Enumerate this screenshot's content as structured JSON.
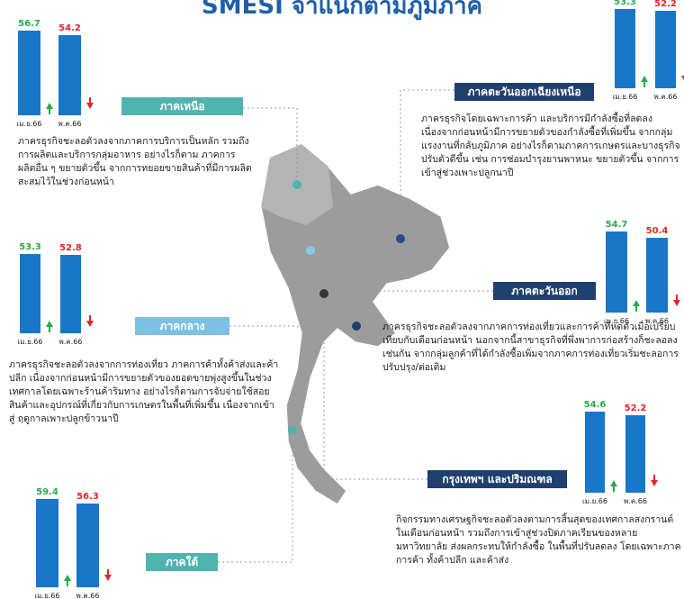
{
  "title": "SMESI จำแนกตามภูมิภาค",
  "categories": [
    "เม.ย.66",
    "พ.ค.66"
  ],
  "regions": [
    {
      "name": "ภาคเหนือ",
      "values": [
        56.7,
        54.2
      ],
      "text": "ภาครธุรกิจชะลอตัวลงจากภาคการบริการเป็นหลัก รวมถึงการผลิตและบริการกลุ่มอาหาร อย่างไรก็ตาม ภาคการผลิตอื่น ๆ ขยายตัวขึ้น จากการทยอยขายสินค้าที่มีการผลิตสะสมไว้ในช่วงก่อนหน้า"
    },
    {
      "name": "ภาคตะวันออกเฉียงเหนือ",
      "values": [
        53.3,
        52.2
      ],
      "text": "ภาครธุรกิจโดยเฉพาะการค้า และบริการมีกำลังซื้อที่ลดลง เนื่องจากก่อนหน้ามีการขยายตัวของกำลังซื้อที่เพิ่มขึ้น จากกลุ่มแรงงานที่กลับภูมิภาค อย่างไรก็ตามภาคการเกษตรและบางธุรกิจปรับตัวดีขึ้น เช่น การซ่อมบำรุงยานพาหนะ ขยายตัวขึ้น จากการเข้าสู่ช่วงเพาะปลูกนาปี"
    },
    {
      "name": "ภาคกลาง",
      "values": [
        53.3,
        52.8
      ],
      "text": "ภาครธุรกิจชะลอตัวลงจากการท่องเที่ยว ภาคการค้าทั้งค้าส่งและค้าปลีก เนื่องจากก่อนหน้ามีการขยายตัวของยอดขายพุ่งสูงขึ้นในช่วงเทศกาลโดยเฉพาะร้านค้าริมทาง อย่างไรก็ตามการจับจ่ายใช้สอยสินค้าและอุปกรณ์ที่เกี่ยวกับการเกษตรในพื้นที่เพิ่มขึ้น เนื่องจากเข้าสู่ ฤดูกาลเพาะปลูกข้าวนาปี"
    },
    {
      "name": "ภาคตะวันออก",
      "values": [
        54.7,
        50.4
      ],
      "text": "ภาครธุรกิจชะลอตัวลงจากภาคการท่องเที่ยวและการค้าที่หดตัวเมื่อเปรียบเทียบกับเดือนก่อนหน้า นอกจากนี้สาขาธุรกิจที่พึ่งพาการก่อสร้างก็ชะลอลงเช่นกัน จากกลุ่มลูกค้าที่ได้กำลังซื้อเพิ่มจากภาคการท่องเที่ยวเริ่มชะลอการปรับปรุง/ต่อเติม"
    },
    {
      "name": "กรุงเทพฯ และปริมณฑล",
      "values": [
        54.6,
        52.2
      ],
      "text": "กิจกรรมทางเศรษฐกิจชะลอตัวลงตามการสิ้นสุดของเทศกาลสงกรานต์ในเดือนก่อนหน้า รวมถึงการเข้าสู่ช่วงปิดภาคเรียนของหลายมหาวิทยาลัย ส่งผลกระทบให้กำลังซื้อ ในพื้นที่ปรับลดลง โดยเฉพาะภาคการค้า ทั้งค้าปลีก และค้าส่ง"
    },
    {
      "name": "ภาคใต้",
      "values": [
        59.4,
        56.3
      ]
    }
  ]
}
